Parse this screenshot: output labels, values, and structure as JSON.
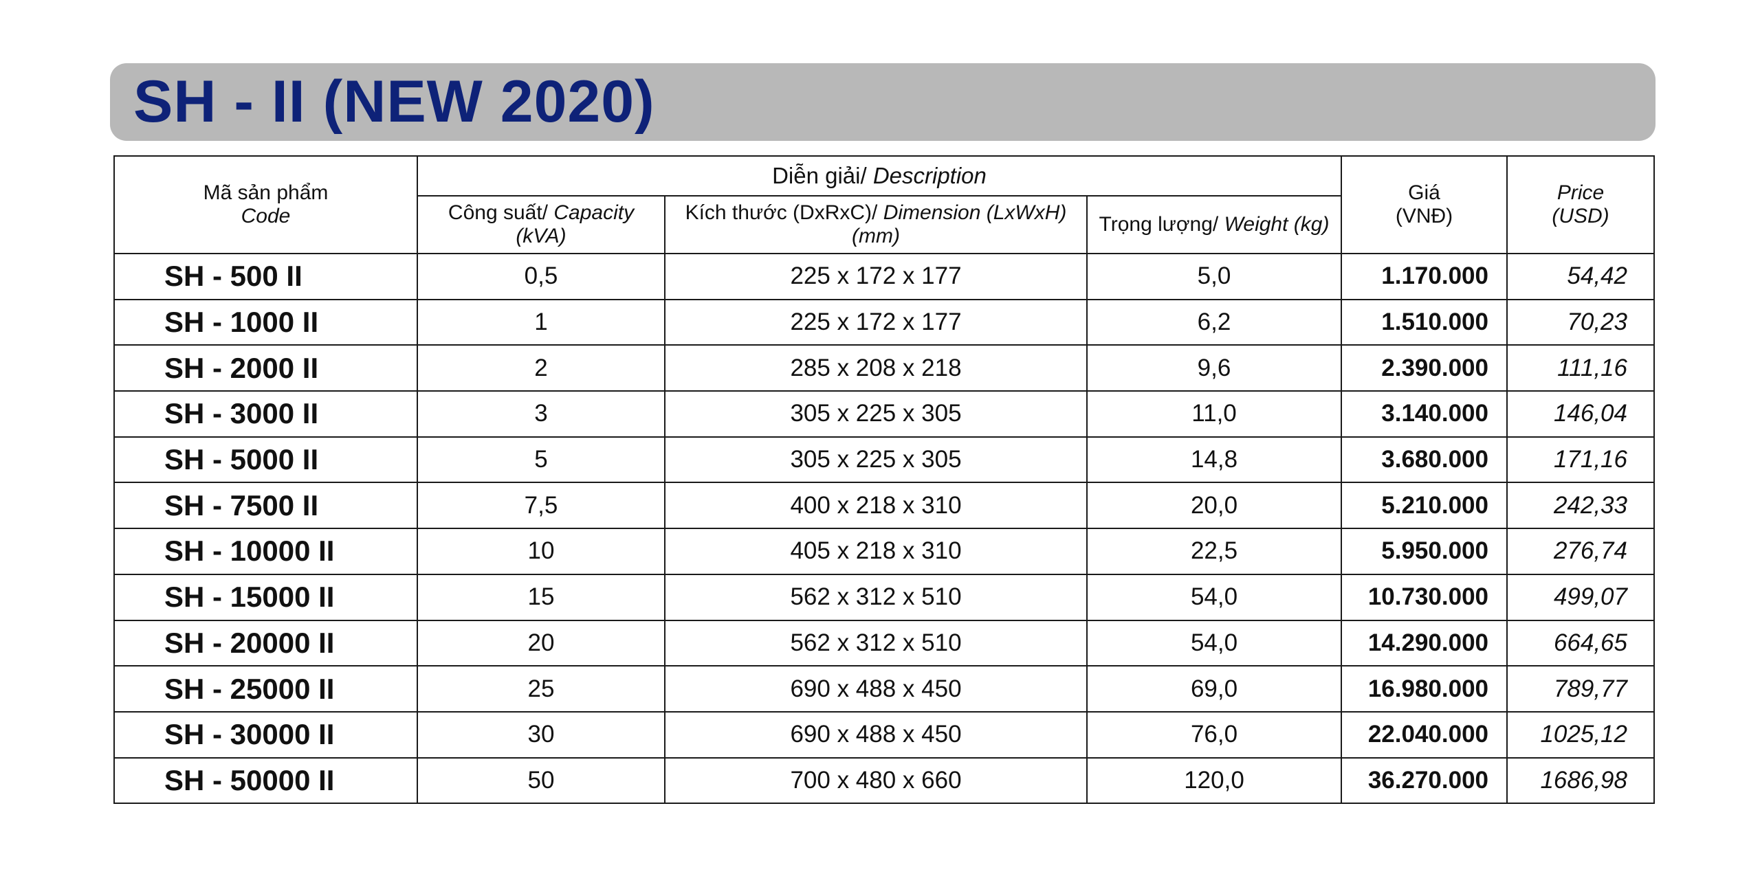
{
  "title": "SH - II (NEW 2020)",
  "colors": {
    "title_text": "#0e2278",
    "title_bar": "#b8b8b8",
    "border": "#1a1a1a"
  },
  "header": {
    "code_vi": "Mã sản phẩm",
    "code_en": "Code",
    "description_vi": "Diễn giải/",
    "description_en": "Description",
    "capacity_vi": "Công suất/",
    "capacity_en": "Capacity",
    "capacity_unit": "(kVA)",
    "dimension_vi": "Kích thước (DxRxC)/",
    "dimension_en": "Dimension (LxWxH)",
    "dimension_unit": "(mm)",
    "weight_vi": "Trọng lượng/",
    "weight_en": "Weight (kg)",
    "price_vnd_label": "Giá",
    "price_vnd_unit": "(VNĐ)",
    "price_usd_label": "Price",
    "price_usd_unit": "(USD)"
  },
  "rows": [
    {
      "code": "SH - 500 II",
      "capacity": "0,5",
      "dimension": "225 x 172 x 177",
      "weight": "5,0",
      "price_vnd": "1.170.000",
      "price_usd": "54,42"
    },
    {
      "code": "SH - 1000 II",
      "capacity": "1",
      "dimension": "225 x 172 x 177",
      "weight": "6,2",
      "price_vnd": "1.510.000",
      "price_usd": "70,23"
    },
    {
      "code": "SH - 2000 II",
      "capacity": "2",
      "dimension": "285 x 208 x 218",
      "weight": "9,6",
      "price_vnd": "2.390.000",
      "price_usd": "111,16"
    },
    {
      "code": "SH - 3000 II",
      "capacity": "3",
      "dimension": "305 x 225 x 305",
      "weight": "11,0",
      "price_vnd": "3.140.000",
      "price_usd": "146,04"
    },
    {
      "code": "SH - 5000 II",
      "capacity": "5",
      "dimension": "305 x 225 x 305",
      "weight": "14,8",
      "price_vnd": "3.680.000",
      "price_usd": "171,16"
    },
    {
      "code": "SH - 7500 II",
      "capacity": "7,5",
      "dimension": "400 x 218 x 310",
      "weight": "20,0",
      "price_vnd": "5.210.000",
      "price_usd": "242,33"
    },
    {
      "code": "SH - 10000 II",
      "capacity": "10",
      "dimension": "405 x 218 x 310",
      "weight": "22,5",
      "price_vnd": "5.950.000",
      "price_usd": "276,74"
    },
    {
      "code": "SH - 15000 II",
      "capacity": "15",
      "dimension": "562 x 312 x 510",
      "weight": "54,0",
      "price_vnd": "10.730.000",
      "price_usd": "499,07"
    },
    {
      "code": "SH - 20000 II",
      "capacity": "20",
      "dimension": "562 x 312 x 510",
      "weight": "54,0",
      "price_vnd": "14.290.000",
      "price_usd": "664,65"
    },
    {
      "code": "SH - 25000 II",
      "capacity": "25",
      "dimension": "690 x 488 x 450",
      "weight": "69,0",
      "price_vnd": "16.980.000",
      "price_usd": "789,77"
    },
    {
      "code": "SH - 30000 II",
      "capacity": "30",
      "dimension": "690 x 488 x 450",
      "weight": "76,0",
      "price_vnd": "22.040.000",
      "price_usd": "1025,12"
    },
    {
      "code": "SH - 50000 II",
      "capacity": "50",
      "dimension": "700 x 480 x 660",
      "weight": "120,0",
      "price_vnd": "36.270.000",
      "price_usd": "1686,98"
    }
  ]
}
